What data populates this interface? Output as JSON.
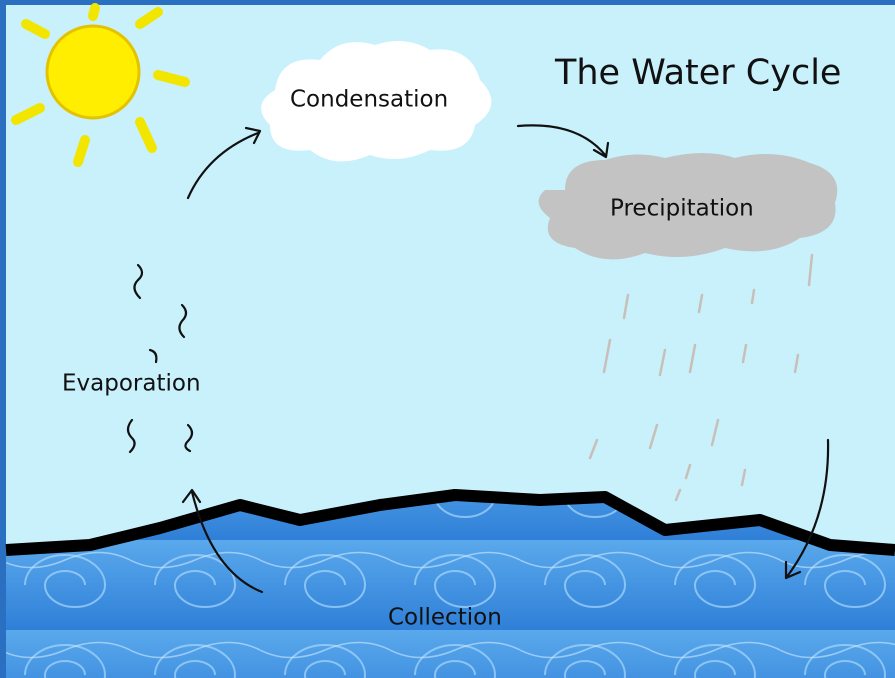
{
  "title": "The Water Cycle",
  "stages": [
    {
      "label": "Condensation"
    },
    {
      "label": "Precipitation"
    },
    {
      "label": "Evaporation"
    },
    {
      "label": "Collection"
    }
  ]
}
